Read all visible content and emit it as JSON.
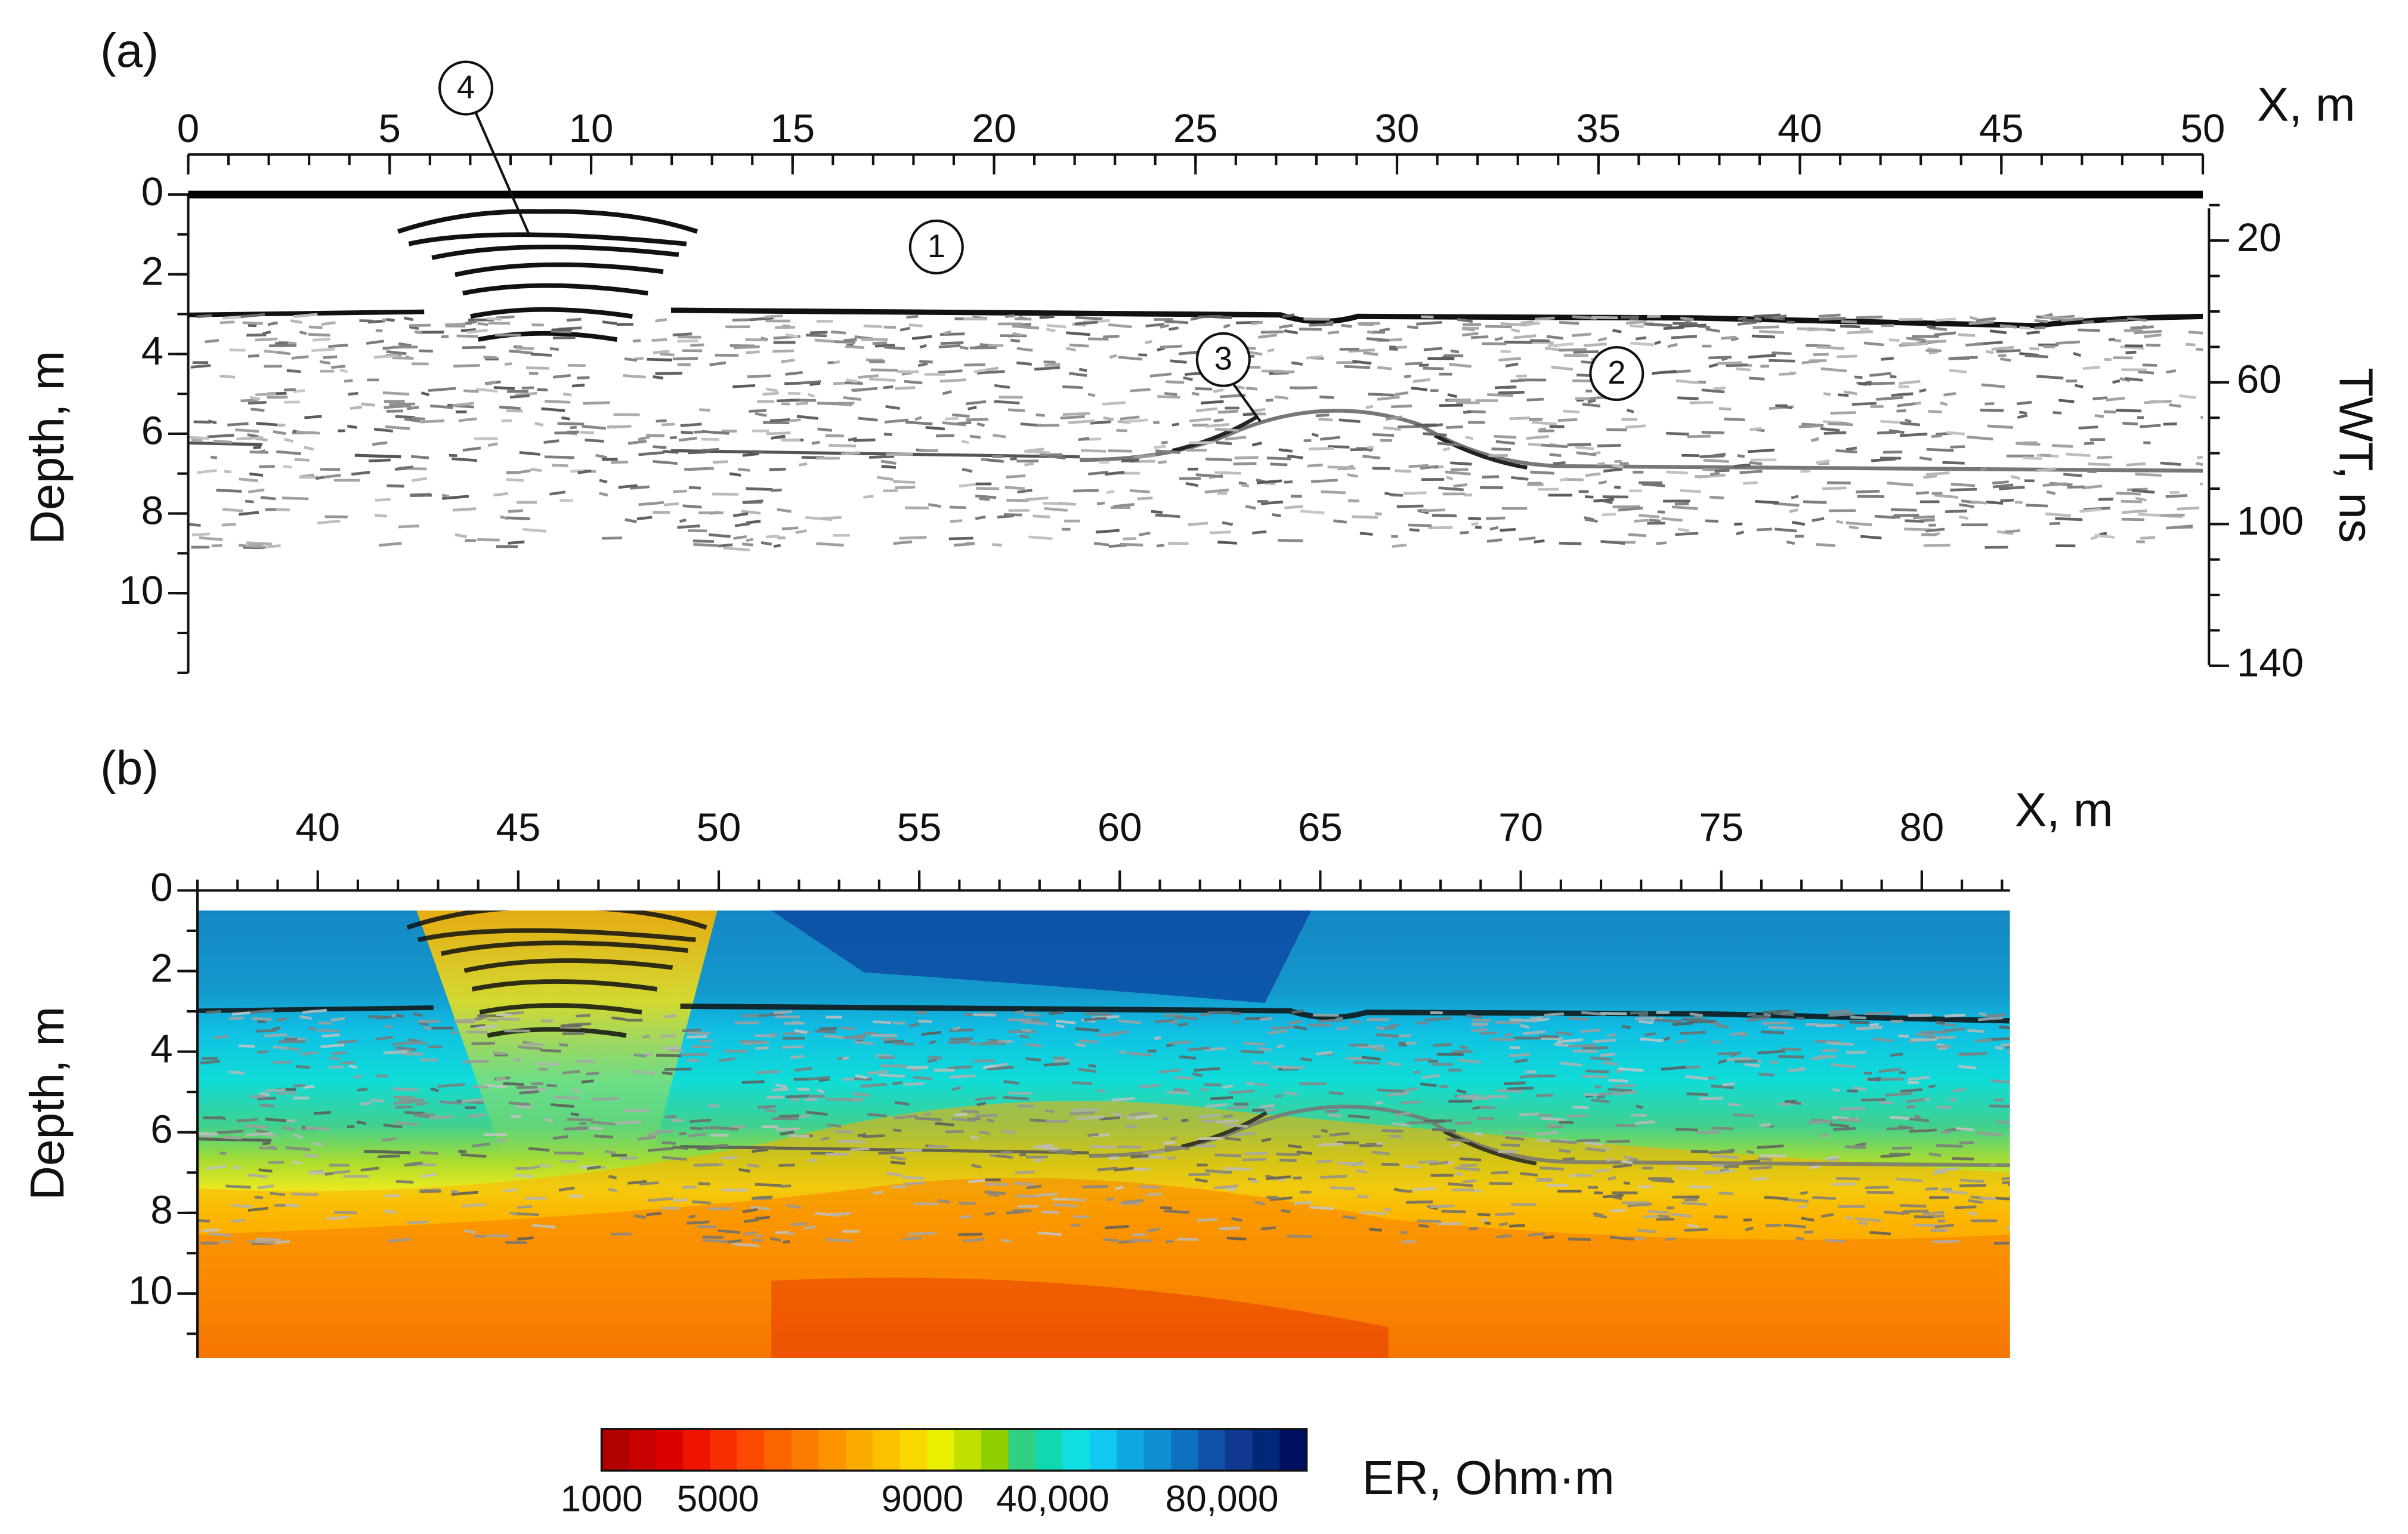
{
  "chart_data": [
    {
      "type": "radargram",
      "panel_label": "(a)",
      "xlabel": "X, m",
      "ylabel": "Depth, m",
      "y2label": "TWT, ns",
      "xlim": [
        0,
        50
      ],
      "xticks": [
        0,
        5,
        10,
        15,
        20,
        25,
        30,
        35,
        40,
        45,
        50
      ],
      "ylim": [
        0,
        12
      ],
      "yticks": [
        0,
        2,
        4,
        6,
        8,
        10
      ],
      "y_inverted": true,
      "y2lim": [
        7,
        142
      ],
      "y2ticks": [
        20,
        60,
        100,
        140
      ],
      "annotations": [
        "1",
        "2",
        "3",
        "4"
      ]
    },
    {
      "type": "resistivity_section",
      "panel_label": "(b)",
      "xlabel": "X, m",
      "ylabel": "Depth, m",
      "xlim": [
        37,
        82.2
      ],
      "xticks": [
        40,
        45,
        50,
        55,
        60,
        65,
        70,
        75,
        80
      ],
      "ylim": [
        0,
        11.6
      ],
      "yticks": [
        0,
        2,
        4,
        6,
        8,
        10
      ],
      "y_inverted": true,
      "colorbar": {
        "label": "ER, Ohm·m",
        "colors": [
          "#b00000",
          "#c80000",
          "#dc0000",
          "#ee1400",
          "#f83000",
          "#fc4a00",
          "#fc6400",
          "#fc7c00",
          "#fc9400",
          "#fcac00",
          "#fcc000",
          "#f8d800",
          "#e8f000",
          "#c0e000",
          "#90d000",
          "#30d080",
          "#10d8b0",
          "#10e0e0",
          "#10c8f0",
          "#10a8e0",
          "#1090d0",
          "#1070c0",
          "#1050a8",
          "#103890",
          "#002878",
          "#001060"
        ],
        "ticks": [
          1000,
          5000,
          9000,
          {
            "value": 40000,
            "label": "40,000"
          },
          {
            "value": 80000,
            "label": "80,000"
          }
        ]
      }
    }
  ]
}
